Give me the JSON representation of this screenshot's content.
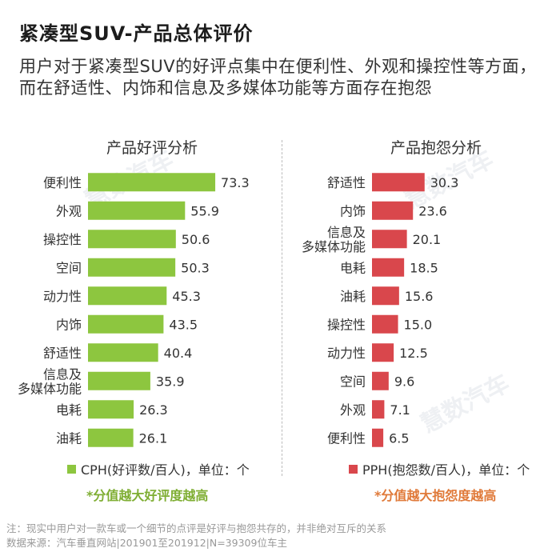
{
  "header": {
    "title": "紧凑型SUV-产品总体评价",
    "subtitle": "用户对于紧凑型SUV的好评点集中在便利性、外观和操控性等方面，而在舒适性、内饰和信息及多媒体功能等方面存在抱怨"
  },
  "watermark": "慧数汽车",
  "chart_data": [
    {
      "type": "bar",
      "orientation": "horizontal",
      "title": "产品好评分析",
      "categories": [
        "便利性",
        "外观",
        "操控性",
        "空间",
        "动力性",
        "内饰",
        "舒适性",
        "信息及\n多媒体功能",
        "电耗",
        "油耗"
      ],
      "series": [
        {
          "name": "CPH(好评数/百人)，单位：个",
          "values": [
            73.3,
            55.9,
            50.6,
            50.3,
            45.3,
            43.5,
            40.4,
            35.9,
            26.3,
            26.1
          ],
          "color": "#8dc63f"
        }
      ],
      "note": "*分值越大好评度越高"
    },
    {
      "type": "bar",
      "orientation": "horizontal",
      "title": "产品抱怨分析",
      "categories": [
        "舒适性",
        "内饰",
        "信息及\n多媒体功能",
        "电耗",
        "油耗",
        "操控性",
        "动力性",
        "空间",
        "外观",
        "便利性"
      ],
      "series": [
        {
          "name": "PPH(抱怨数/百人)，单位：个",
          "values": [
            30.3,
            23.6,
            20.1,
            18.5,
            15.6,
            15.0,
            12.5,
            9.6,
            7.1,
            6.5
          ],
          "color": "#d9474c"
        }
      ],
      "note": "*分值越大抱怨度越高"
    }
  ],
  "footer": {
    "note": "注：现实中用户对一款车或一个细节的点评是好评与抱怨共存的，并非绝对互斥的关系",
    "source": "数据来源：汽车垂直网站|201901至201912|N=39309位车主"
  }
}
